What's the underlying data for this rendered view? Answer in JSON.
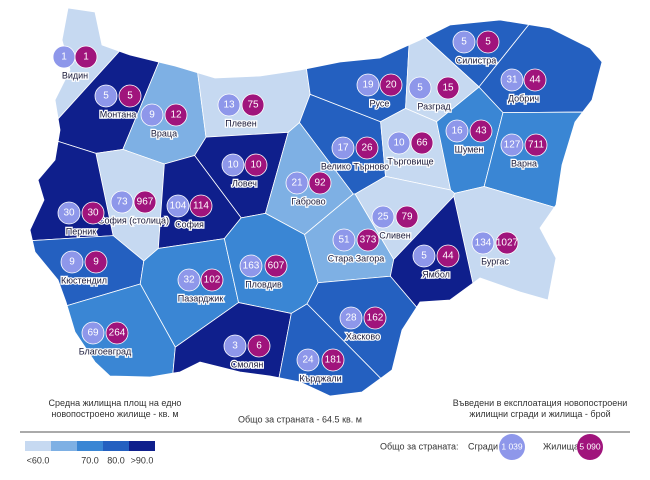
{
  "regions": [
    {
      "name": "Видин",
      "buildings": 1,
      "dwellings": 1,
      "color": "#c6d9f1"
    },
    {
      "name": "Монтана",
      "buildings": 5,
      "dwellings": 5,
      "color": "#0f1f8c"
    },
    {
      "name": "Враца",
      "buildings": 9,
      "dwellings": 12,
      "color": "#7eb0e4"
    },
    {
      "name": "Плевен",
      "buildings": 13,
      "dwellings": 75,
      "color": "#c6d9f1"
    },
    {
      "name": "Ловеч",
      "buildings": 10,
      "dwellings": 10,
      "color": "#0f1f8c"
    },
    {
      "name": "Велико Търново",
      "buildings": 17,
      "dwellings": 26,
      "color": "#2460c0"
    },
    {
      "name": "Русе",
      "buildings": 19,
      "dwellings": 20,
      "color": "#2460c0"
    },
    {
      "name": "Силистра",
      "buildings": 5,
      "dwellings": 5,
      "color": "#2460c0"
    },
    {
      "name": "Разград",
      "buildings": 5,
      "dwellings": 15,
      "color": "#c6d9f1"
    },
    {
      "name": "Добрич",
      "buildings": 31,
      "dwellings": 44,
      "color": "#2460c0"
    },
    {
      "name": "Търговище",
      "buildings": 10,
      "dwellings": 66,
      "color": "#c6d9f1"
    },
    {
      "name": "Шумен",
      "buildings": 16,
      "dwellings": 43,
      "color": "#3a86d4"
    },
    {
      "name": "Варна",
      "buildings": 127,
      "dwellings": 711,
      "color": "#3a86d4"
    },
    {
      "name": "Габрово",
      "buildings": 21,
      "dwellings": 92,
      "color": "#7eb0e4"
    },
    {
      "name": "София (столица)",
      "buildings": 73,
      "dwellings": 967,
      "color": "#c6d9f1"
    },
    {
      "name": "София",
      "buildings": 104,
      "dwellings": 114,
      "color": "#0f1f8c"
    },
    {
      "name": "Перник",
      "buildings": 30,
      "dwellings": 30,
      "color": "#0f1f8c"
    },
    {
      "name": "Кюстендил",
      "buildings": 9,
      "dwellings": 9,
      "color": "#2460c0"
    },
    {
      "name": "Пазарджик",
      "buildings": 32,
      "dwellings": 102,
      "color": "#3a86d4"
    },
    {
      "name": "Пловдив",
      "buildings": 163,
      "dwellings": 607,
      "color": "#3a86d4"
    },
    {
      "name": "Стара Загора",
      "buildings": 51,
      "dwellings": 373,
      "color": "#7eb0e4"
    },
    {
      "name": "Сливен",
      "buildings": 25,
      "dwellings": 79,
      "color": "#c6d9f1"
    },
    {
      "name": "Бургас",
      "buildings": 134,
      "dwellings": 1027,
      "color": "#c6d9f1"
    },
    {
      "name": "Ямбол",
      "buildings": 5,
      "dwellings": 44,
      "color": "#0f1f8c"
    },
    {
      "name": "Благоевград",
      "buildings": 69,
      "dwellings": 264,
      "color": "#3a86d4"
    },
    {
      "name": "Смолян",
      "buildings": 3,
      "dwellings": 6,
      "color": "#0f1f8c"
    },
    {
      "name": "Хасково",
      "buildings": 28,
      "dwellings": 162,
      "color": "#2460c0"
    },
    {
      "name": "Кърджали",
      "buildings": 24,
      "dwellings": 181,
      "color": "#2460c0"
    }
  ],
  "legend": {
    "area_title": "Средна жилищна площ на едно новопостроено жилище - кв. м",
    "area_classes": [
      {
        "label": "<60.0",
        "color": "#c6d9f1"
      },
      {
        "label": "",
        "color": "#7eb0e4"
      },
      {
        "label": "70.0",
        "color": "#3a86d4"
      },
      {
        "label": "80.0",
        "color": "#2460c0"
      },
      {
        "label": ">90.0",
        "color": "#0f1f8c"
      }
    ],
    "country_average": "Общо за страната - 64.5 кв. м",
    "count_title": "Въведени в експлоатация новопостроени жилищни сгради и жилища - брой",
    "total_label": "Общо за страната:",
    "buildings_label": "Сгради",
    "buildings_total": "1 039",
    "buildings_color": "#8e97ea",
    "dwellings_label": "Жилища",
    "dwellings_total": "5 090",
    "dwellings_color": "#a0147c"
  }
}
